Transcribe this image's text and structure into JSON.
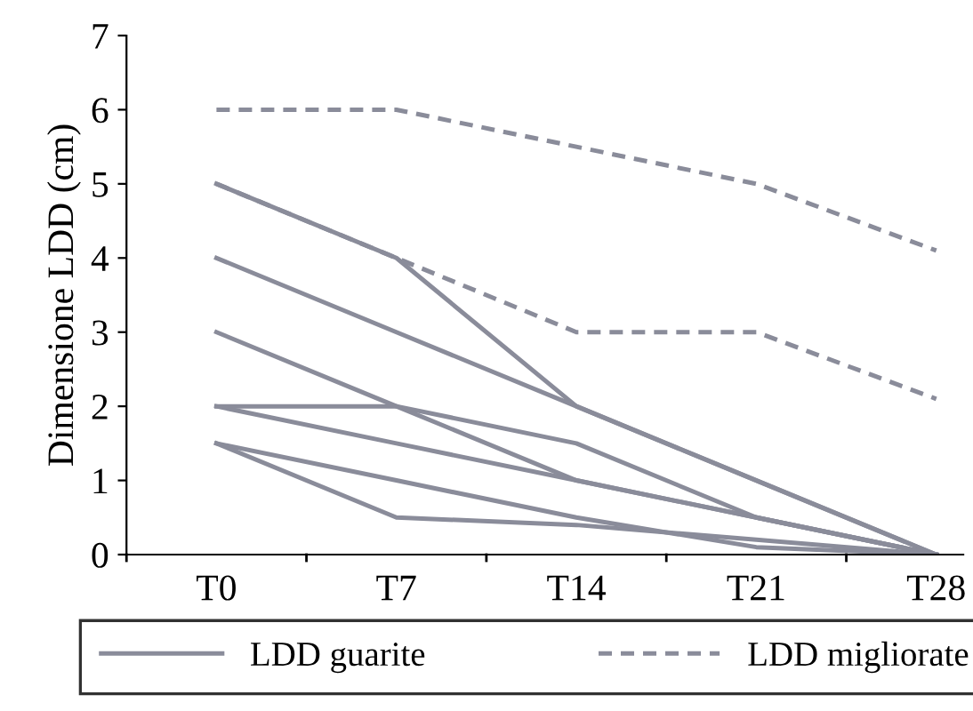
{
  "chart_data": {
    "type": "line",
    "ylabel": "Dimensione LDD (cm)",
    "categories": [
      "T0",
      "T7",
      "T14",
      "T21",
      "T28"
    ],
    "series": [
      {
        "name": "LDD guarite",
        "color": "#8a8c9a",
        "line_style": "solid",
        "values": [
          5,
          4,
          2,
          1,
          0
        ]
      },
      {
        "color": "#8a8c9a",
        "line_style": "solid",
        "values": [
          4,
          3,
          2,
          1,
          0
        ]
      },
      {
        "color": "#8a8c9a",
        "line_style": "solid",
        "values": [
          3,
          2,
          1,
          0.5,
          0
        ]
      },
      {
        "color": "#8a8c9a",
        "line_style": "solid",
        "values": [
          2,
          2,
          1.5,
          0.5,
          0
        ]
      },
      {
        "color": "#8a8c9a",
        "line_style": "solid",
        "values": [
          2,
          1.5,
          1,
          0.5,
          0
        ]
      },
      {
        "color": "#8a8c9a",
        "line_style": "solid",
        "values": [
          1.5,
          1,
          0.5,
          0.1,
          0
        ]
      },
      {
        "color": "#8a8c9a",
        "line_style": "solid",
        "values": [
          1.5,
          0.5,
          0.4,
          0.2,
          0
        ]
      },
      {
        "name": "LDD migliorate",
        "color": "#8a8c9a",
        "line_style": "dashed",
        "values": [
          6,
          6,
          5.5,
          5,
          4.1
        ]
      },
      {
        "color": "#8a8c9a",
        "line_style": "dashed",
        "values": [
          5,
          4,
          3,
          3,
          2.1
        ]
      }
    ],
    "ylim": [
      0,
      7
    ],
    "yticks": [
      0,
      1,
      2,
      3,
      4,
      5,
      6,
      7
    ],
    "grid": false,
    "legend": "bottom",
    "marker": "none"
  }
}
